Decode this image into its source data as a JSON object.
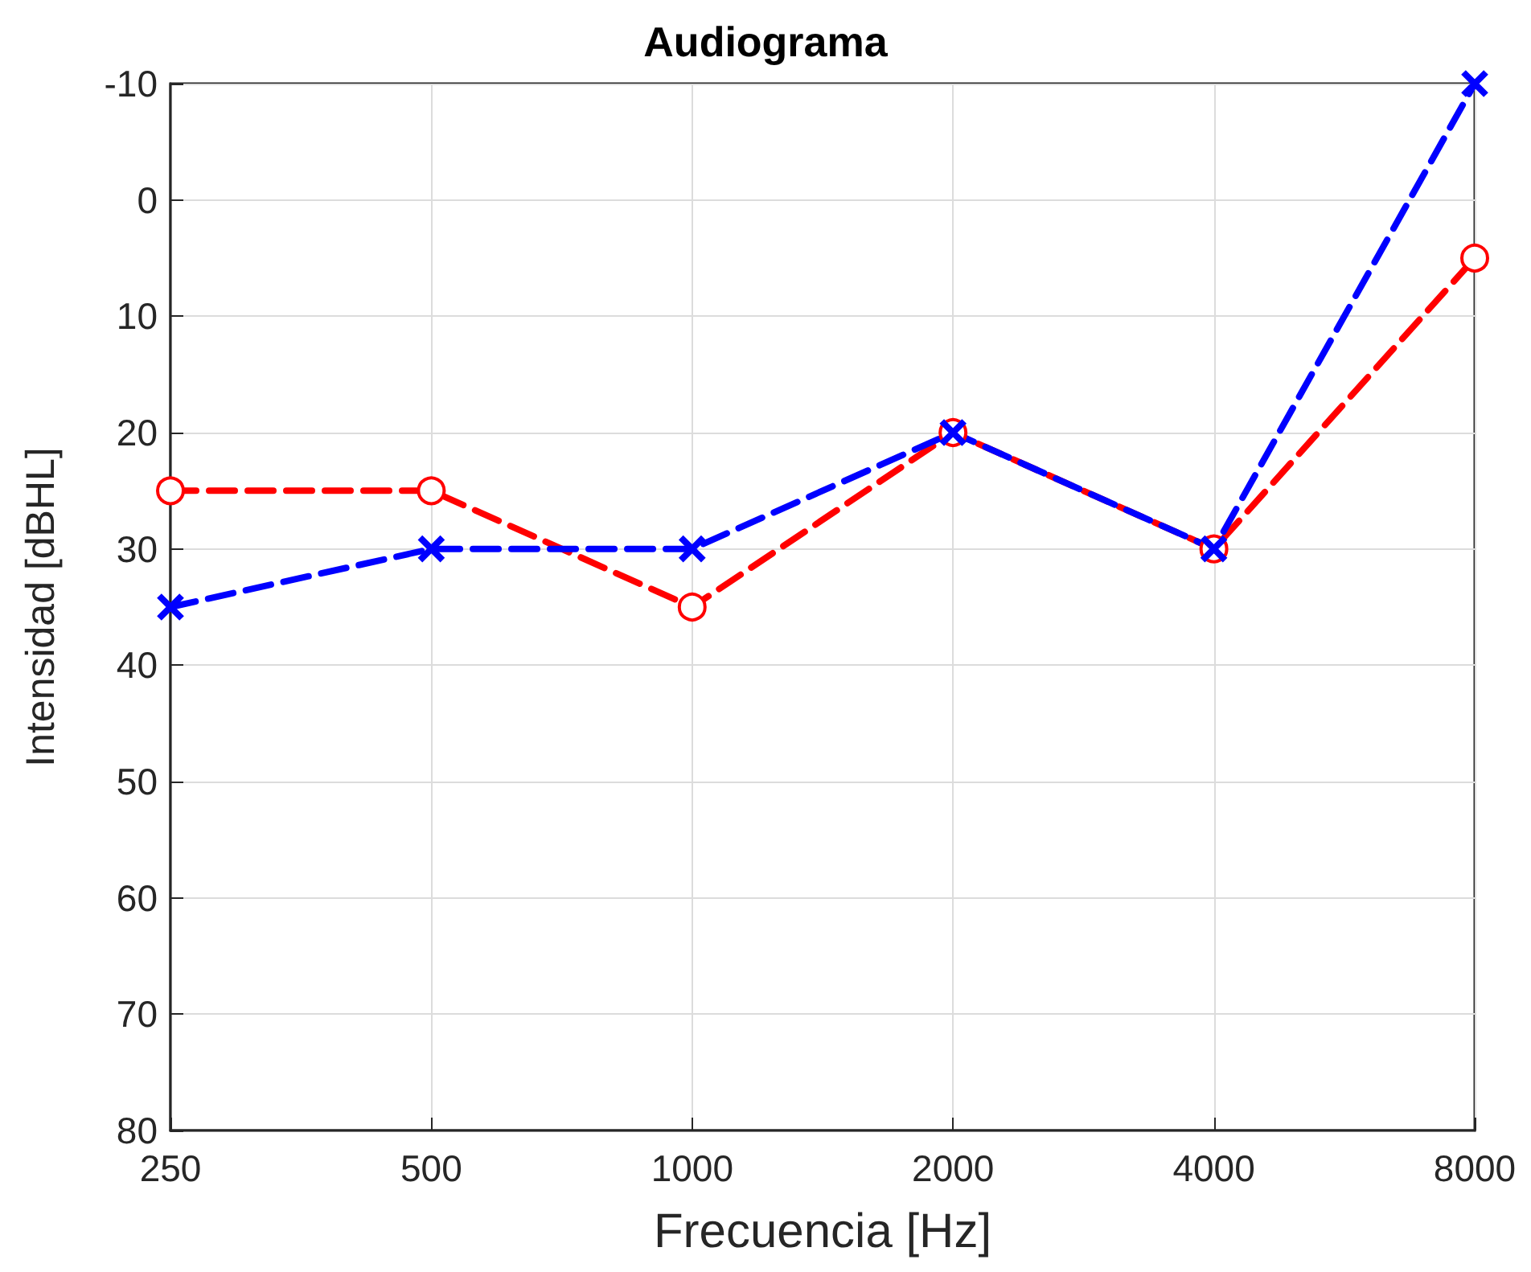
{
  "chart_data": {
    "type": "line",
    "title": "Audiograma",
    "xlabel": "Frecuencia [Hz]",
    "ylabel": "Intensidad [dBHL]",
    "categories": [
      "250",
      "500",
      "1000",
      "2000",
      "4000",
      "8000"
    ],
    "series": [
      {
        "color": "#ff0000",
        "values": [
          25,
          25,
          35,
          20,
          30,
          5
        ],
        "marker": "circle"
      },
      {
        "color": "#0000ff",
        "values": [
          35,
          30,
          30,
          20,
          30,
          -10
        ],
        "marker": "cross"
      }
    ],
    "ylim": [
      80,
      -10
    ],
    "yticks": [
      -10,
      0,
      10,
      20,
      30,
      40,
      50,
      60,
      70,
      80
    ],
    "grid": true,
    "line_style": "dashed"
  }
}
